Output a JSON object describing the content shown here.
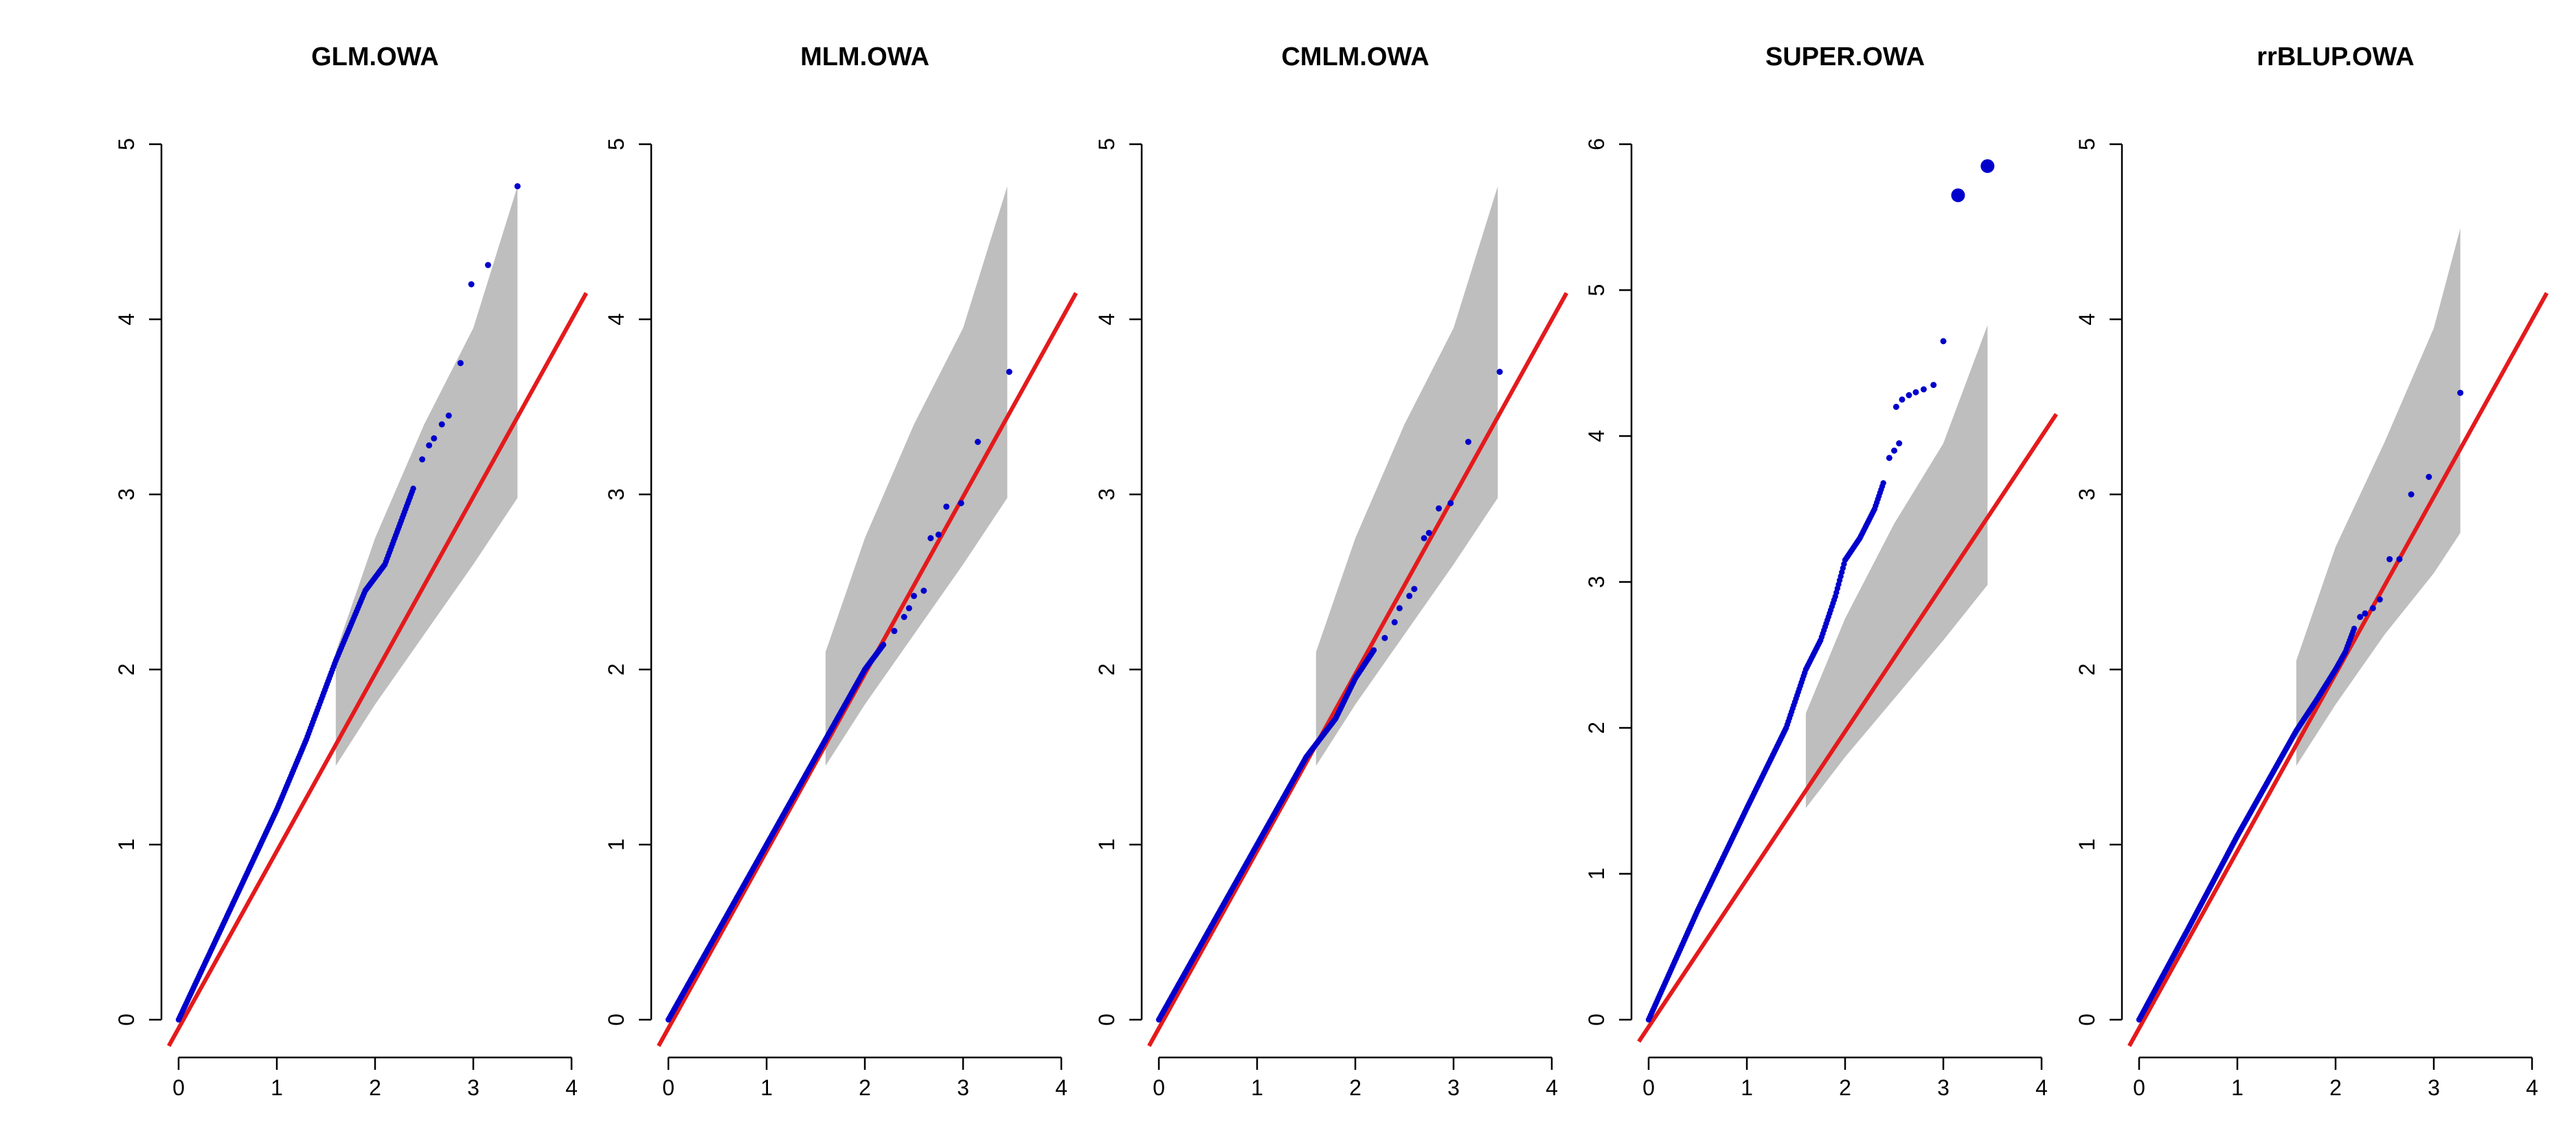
{
  "figure": {
    "band_color": "#bebebe",
    "reference_line_color": "#e41a1c",
    "point_color": "#0000cc",
    "axis_color": "#000000"
  },
  "chart_data": [
    {
      "type": "scatter",
      "title": "GLM.OWA",
      "xlabel": "",
      "ylabel": "",
      "xlim": [
        0,
        4
      ],
      "ylim": [
        0,
        5
      ],
      "x_ticks": [
        0,
        1,
        2,
        3,
        4
      ],
      "y_ticks": [
        0,
        1,
        2,
        3,
        4,
        5
      ],
      "curve": [
        [
          0,
          0
        ],
        [
          0.5,
          0.6
        ],
        [
          1,
          1.2
        ],
        [
          1.3,
          1.6
        ],
        [
          1.6,
          2.05
        ],
        [
          1.9,
          2.45
        ],
        [
          2.1,
          2.6
        ],
        [
          2.2,
          2.75
        ],
        [
          2.3,
          2.9
        ],
        [
          2.4,
          3.05
        ]
      ],
      "points": [
        [
          2.48,
          3.2
        ],
        [
          2.55,
          3.28
        ],
        [
          2.6,
          3.32
        ],
        [
          2.68,
          3.4
        ],
        [
          2.75,
          3.45
        ],
        [
          2.87,
          3.75
        ],
        [
          2.98,
          4.2
        ],
        [
          3.15,
          4.31
        ],
        [
          3.45,
          4.76
        ]
      ],
      "big_points": [],
      "band": {
        "x": [
          1.6,
          2.0,
          2.5,
          3.0,
          3.45
        ],
        "upper": [
          2.1,
          2.75,
          3.4,
          3.95,
          4.76
        ],
        "lower": [
          1.45,
          1.8,
          2.2,
          2.6,
          2.98
        ]
      },
      "reference_line": {
        "from": [
          -0.1,
          -0.15
        ],
        "to": [
          4.15,
          4.15
        ]
      }
    },
    {
      "type": "scatter",
      "title": "MLM.OWA",
      "xlabel": "",
      "ylabel": "",
      "xlim": [
        0,
        4
      ],
      "ylim": [
        0,
        5
      ],
      "x_ticks": [
        0,
        1,
        2,
        3,
        4
      ],
      "y_ticks": [
        0,
        1,
        2,
        3,
        4,
        5
      ],
      "curve": [
        [
          0,
          0
        ],
        [
          0.5,
          0.5
        ],
        [
          1,
          1.0
        ],
        [
          1.5,
          1.5
        ],
        [
          1.8,
          1.8
        ],
        [
          2.0,
          2.0
        ],
        [
          2.2,
          2.15
        ]
      ],
      "points": [
        [
          2.3,
          2.22
        ],
        [
          2.4,
          2.3
        ],
        [
          2.45,
          2.35
        ],
        [
          2.5,
          2.42
        ],
        [
          2.6,
          2.45
        ],
        [
          2.67,
          2.75
        ],
        [
          2.75,
          2.77
        ],
        [
          2.83,
          2.93
        ],
        [
          2.98,
          2.95
        ],
        [
          3.15,
          3.3
        ],
        [
          3.47,
          3.7
        ]
      ],
      "big_points": [],
      "band": {
        "x": [
          1.6,
          2.0,
          2.5,
          3.0,
          3.45
        ],
        "upper": [
          2.1,
          2.75,
          3.4,
          3.95,
          4.76
        ],
        "lower": [
          1.45,
          1.8,
          2.2,
          2.6,
          2.98
        ]
      },
      "reference_line": {
        "from": [
          -0.1,
          -0.15
        ],
        "to": [
          4.15,
          4.15
        ]
      }
    },
    {
      "type": "scatter",
      "title": "CMLM.OWA",
      "xlabel": "",
      "ylabel": "",
      "xlim": [
        0,
        4
      ],
      "ylim": [
        0,
        5
      ],
      "x_ticks": [
        0,
        1,
        2,
        3,
        4
      ],
      "y_ticks": [
        0,
        1,
        2,
        3,
        4,
        5
      ],
      "curve": [
        [
          0,
          0
        ],
        [
          0.5,
          0.5
        ],
        [
          1,
          1.0
        ],
        [
          1.5,
          1.5
        ],
        [
          1.8,
          1.72
        ],
        [
          2.0,
          1.95
        ],
        [
          2.2,
          2.12
        ]
      ],
      "points": [
        [
          2.3,
          2.18
        ],
        [
          2.4,
          2.27
        ],
        [
          2.45,
          2.35
        ],
        [
          2.55,
          2.42
        ],
        [
          2.6,
          2.46
        ],
        [
          2.7,
          2.75
        ],
        [
          2.75,
          2.78
        ],
        [
          2.85,
          2.92
        ],
        [
          2.97,
          2.95
        ],
        [
          3.15,
          3.3
        ],
        [
          3.47,
          3.7
        ]
      ],
      "big_points": [],
      "band": {
        "x": [
          1.6,
          2.0,
          2.5,
          3.0,
          3.45
        ],
        "upper": [
          2.1,
          2.75,
          3.4,
          3.95,
          4.76
        ],
        "lower": [
          1.45,
          1.8,
          2.2,
          2.6,
          2.98
        ]
      },
      "reference_line": {
        "from": [
          -0.1,
          -0.15
        ],
        "to": [
          4.15,
          4.15
        ]
      }
    },
    {
      "type": "scatter",
      "title": "SUPER.OWA",
      "xlabel": "",
      "ylabel": "",
      "xlim": [
        0,
        4
      ],
      "ylim": [
        0,
        6
      ],
      "x_ticks": [
        0,
        1,
        2,
        3,
        4
      ],
      "y_ticks": [
        0,
        1,
        2,
        3,
        4,
        5,
        6
      ],
      "curve": [
        [
          0,
          0
        ],
        [
          0.5,
          0.75
        ],
        [
          1,
          1.45
        ],
        [
          1.4,
          2.0
        ],
        [
          1.6,
          2.4
        ],
        [
          1.75,
          2.6
        ],
        [
          1.9,
          2.9
        ],
        [
          2.0,
          3.15
        ],
        [
          2.15,
          3.3
        ],
        [
          2.3,
          3.5
        ],
        [
          2.4,
          3.7
        ]
      ],
      "points": [
        [
          2.45,
          3.85
        ],
        [
          2.5,
          3.9
        ],
        [
          2.55,
          3.95
        ],
        [
          2.52,
          4.2
        ],
        [
          2.58,
          4.25
        ],
        [
          2.65,
          4.28
        ],
        [
          2.72,
          4.3
        ],
        [
          2.8,
          4.32
        ],
        [
          2.9,
          4.35
        ],
        [
          3.0,
          4.65
        ]
      ],
      "big_points": [
        [
          3.15,
          5.65
        ],
        [
          3.45,
          5.85
        ]
      ],
      "band": {
        "x": [
          1.6,
          2.0,
          2.5,
          3.0,
          3.45
        ],
        "upper": [
          2.1,
          2.75,
          3.4,
          3.95,
          4.76
        ],
        "lower": [
          1.45,
          1.8,
          2.2,
          2.6,
          2.98
        ]
      },
      "reference_line": {
        "from": [
          -0.1,
          -0.15
        ],
        "to": [
          4.15,
          4.15
        ]
      }
    },
    {
      "type": "scatter",
      "title": "rrBLUP.OWA",
      "xlabel": "",
      "ylabel": "",
      "xlim": [
        0,
        4
      ],
      "ylim": [
        0,
        5
      ],
      "x_ticks": [
        0,
        1,
        2,
        3,
        4
      ],
      "y_ticks": [
        0,
        1,
        2,
        3,
        4,
        5
      ],
      "curve": [
        [
          0,
          0
        ],
        [
          0.5,
          0.52
        ],
        [
          1,
          1.05
        ],
        [
          1.4,
          1.45
        ],
        [
          1.6,
          1.65
        ],
        [
          1.8,
          1.82
        ],
        [
          2.0,
          2.0
        ],
        [
          2.1,
          2.1
        ],
        [
          2.2,
          2.25
        ]
      ],
      "points": [
        [
          2.25,
          2.3
        ],
        [
          2.3,
          2.32
        ],
        [
          2.38,
          2.35
        ],
        [
          2.45,
          2.4
        ],
        [
          2.55,
          2.63
        ],
        [
          2.65,
          2.63
        ],
        [
          2.77,
          3.0
        ],
        [
          2.95,
          3.1
        ],
        [
          3.27,
          3.58
        ]
      ],
      "big_points": [],
      "band": {
        "x": [
          1.6,
          2.0,
          2.5,
          3.0,
          3.27
        ],
        "upper": [
          2.05,
          2.7,
          3.3,
          3.95,
          4.52
        ],
        "lower": [
          1.45,
          1.8,
          2.2,
          2.55,
          2.78
        ]
      },
      "reference_line": {
        "from": [
          -0.1,
          -0.15
        ],
        "to": [
          4.15,
          4.15
        ]
      }
    }
  ]
}
